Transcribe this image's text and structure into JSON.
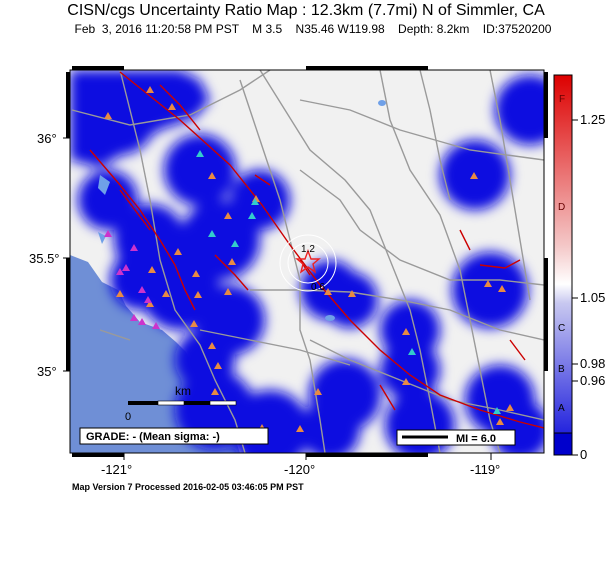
{
  "map": {
    "title": "CISN/cgs Uncertainty Ratio Map : 12.3km (7.7mi) N of Simmler, CA",
    "subtitle": "Feb  3, 2016 11:20:58 PM PST    M 3.5    N35.46 W119.98    Depth: 8.2km    ID:37520200",
    "x_ticks": [
      "-121°",
      "-120°",
      "-119°"
    ],
    "y_ticks": [
      "36°",
      "35.5°",
      "35°"
    ],
    "contour_labels": [
      "1.2",
      "0.6"
    ],
    "scale_label": "km",
    "scale_zero": "0",
    "grade_text": "GRADE: - (Mean sigma: -)",
    "legend_mi": "MI = 6.0",
    "footer": "Map Version 7 Processed 2016-02-05 03:46:05 PM PST",
    "colorbar": {
      "values": [
        "1.25",
        "1.05",
        "0.98",
        "0.96",
        "0"
      ],
      "letters": [
        "F",
        "D",
        "C",
        "B",
        "A"
      ]
    },
    "colors": {
      "ocean": "#6f8fd6",
      "land": "#f1f1f1",
      "uncertainty_blue": "#1010e0",
      "fault": "#cc0000",
      "road": "#9a9a9a",
      "star": "#ee2222"
    }
  }
}
